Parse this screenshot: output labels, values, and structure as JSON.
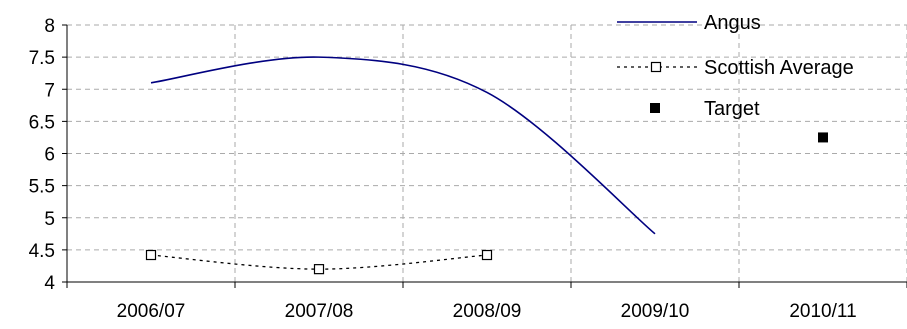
{
  "chart_data": {
    "type": "line",
    "categories": [
      "2006/07",
      "2007/08",
      "2008/09",
      "2009/10",
      "2010/11"
    ],
    "ylim": [
      4,
      8
    ],
    "yticks": [
      "4",
      "4.5",
      "5",
      "5.5",
      "6",
      "6.5",
      "7",
      "7.5",
      "8"
    ],
    "grid": true,
    "legend_position": "top-right",
    "series": [
      {
        "name": "Angus",
        "values": [
          7.1,
          7.5,
          6.95,
          4.75,
          null
        ],
        "color": "#000080",
        "style": "solid-smooth"
      },
      {
        "name": "Scottish Average",
        "values": [
          4.42,
          4.2,
          4.42,
          null,
          null
        ],
        "color": "#000000",
        "style": "dotted-square-markers"
      },
      {
        "name": "Target",
        "values": [
          null,
          null,
          null,
          null,
          6.25
        ],
        "color": "#000000",
        "style": "filled-square-marker"
      }
    ]
  }
}
